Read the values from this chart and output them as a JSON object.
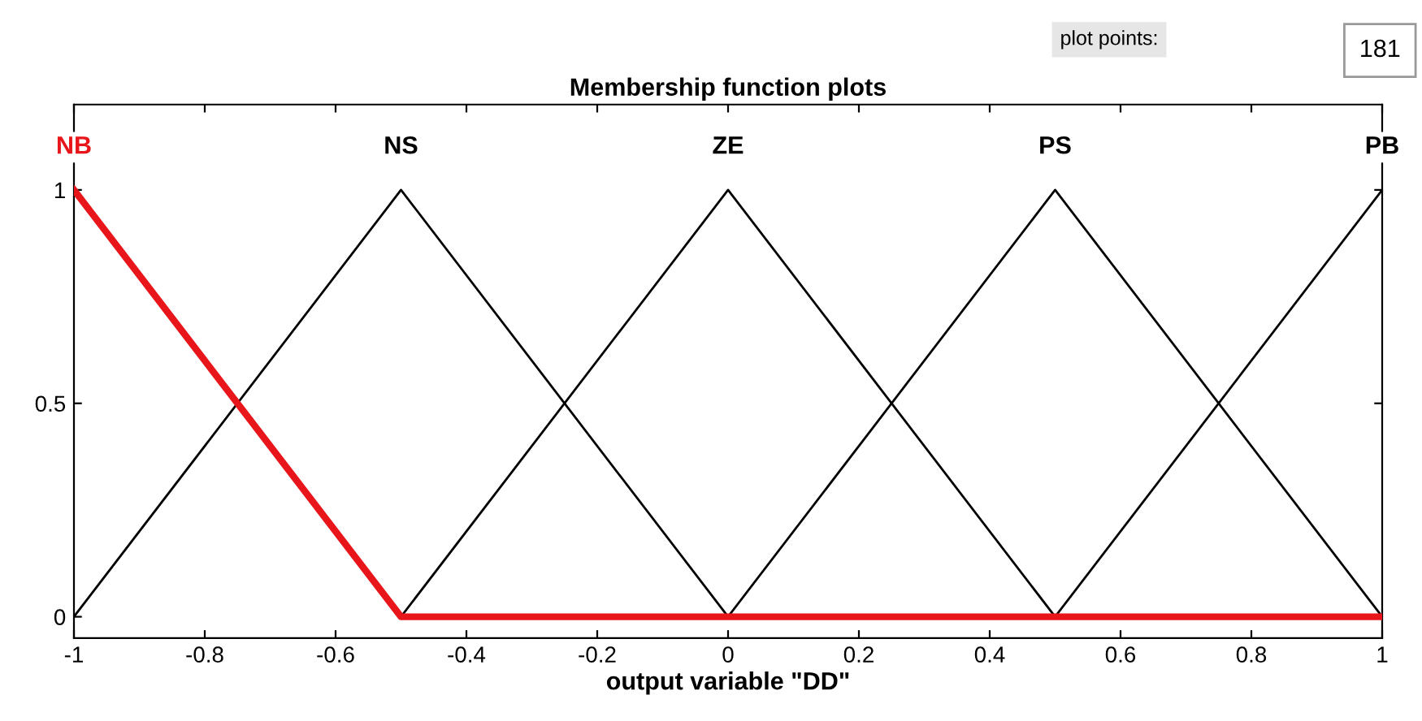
{
  "chart_data": {
    "type": "line",
    "title": "Membership function plots",
    "xlabel": "output variable \"DD\"",
    "series": [
      {
        "name": "NB",
        "color": "#e8161b",
        "x": [
          -1,
          -0.5,
          1
        ],
        "values": [
          1,
          0,
          0
        ]
      },
      {
        "name": "NS",
        "color": "#000000",
        "x": [
          -1,
          -0.5,
          0
        ],
        "values": [
          0,
          1,
          0
        ]
      },
      {
        "name": "ZE",
        "color": "#000000",
        "x": [
          -0.5,
          0,
          0.5
        ],
        "values": [
          0,
          1,
          0
        ]
      },
      {
        "name": "PS",
        "color": "#000000",
        "x": [
          0,
          0.5,
          1
        ],
        "values": [
          0,
          1,
          0
        ]
      },
      {
        "name": "PB",
        "color": "#000000",
        "x": [
          0.5,
          1
        ],
        "values": [
          0,
          1
        ]
      }
    ],
    "xlim": [
      -1,
      1
    ],
    "ylim": [
      -0.05,
      1.2
    ],
    "xticks": [
      {
        "value": -1,
        "label": "-1"
      },
      {
        "value": -0.8,
        "label": "-0.8"
      },
      {
        "value": -0.6,
        "label": "-0.6"
      },
      {
        "value": -0.4,
        "label": "-0.4"
      },
      {
        "value": -0.2,
        "label": "-0.2"
      },
      0,
      0.2,
      0.4,
      0.6,
      0.8,
      1
    ],
    "yticks": [
      0,
      0.5,
      1
    ],
    "annotations": [
      "plot points:",
      "181"
    ],
    "grid": false,
    "legend": "top",
    "line_style": "solid",
    "marker": "none"
  }
}
